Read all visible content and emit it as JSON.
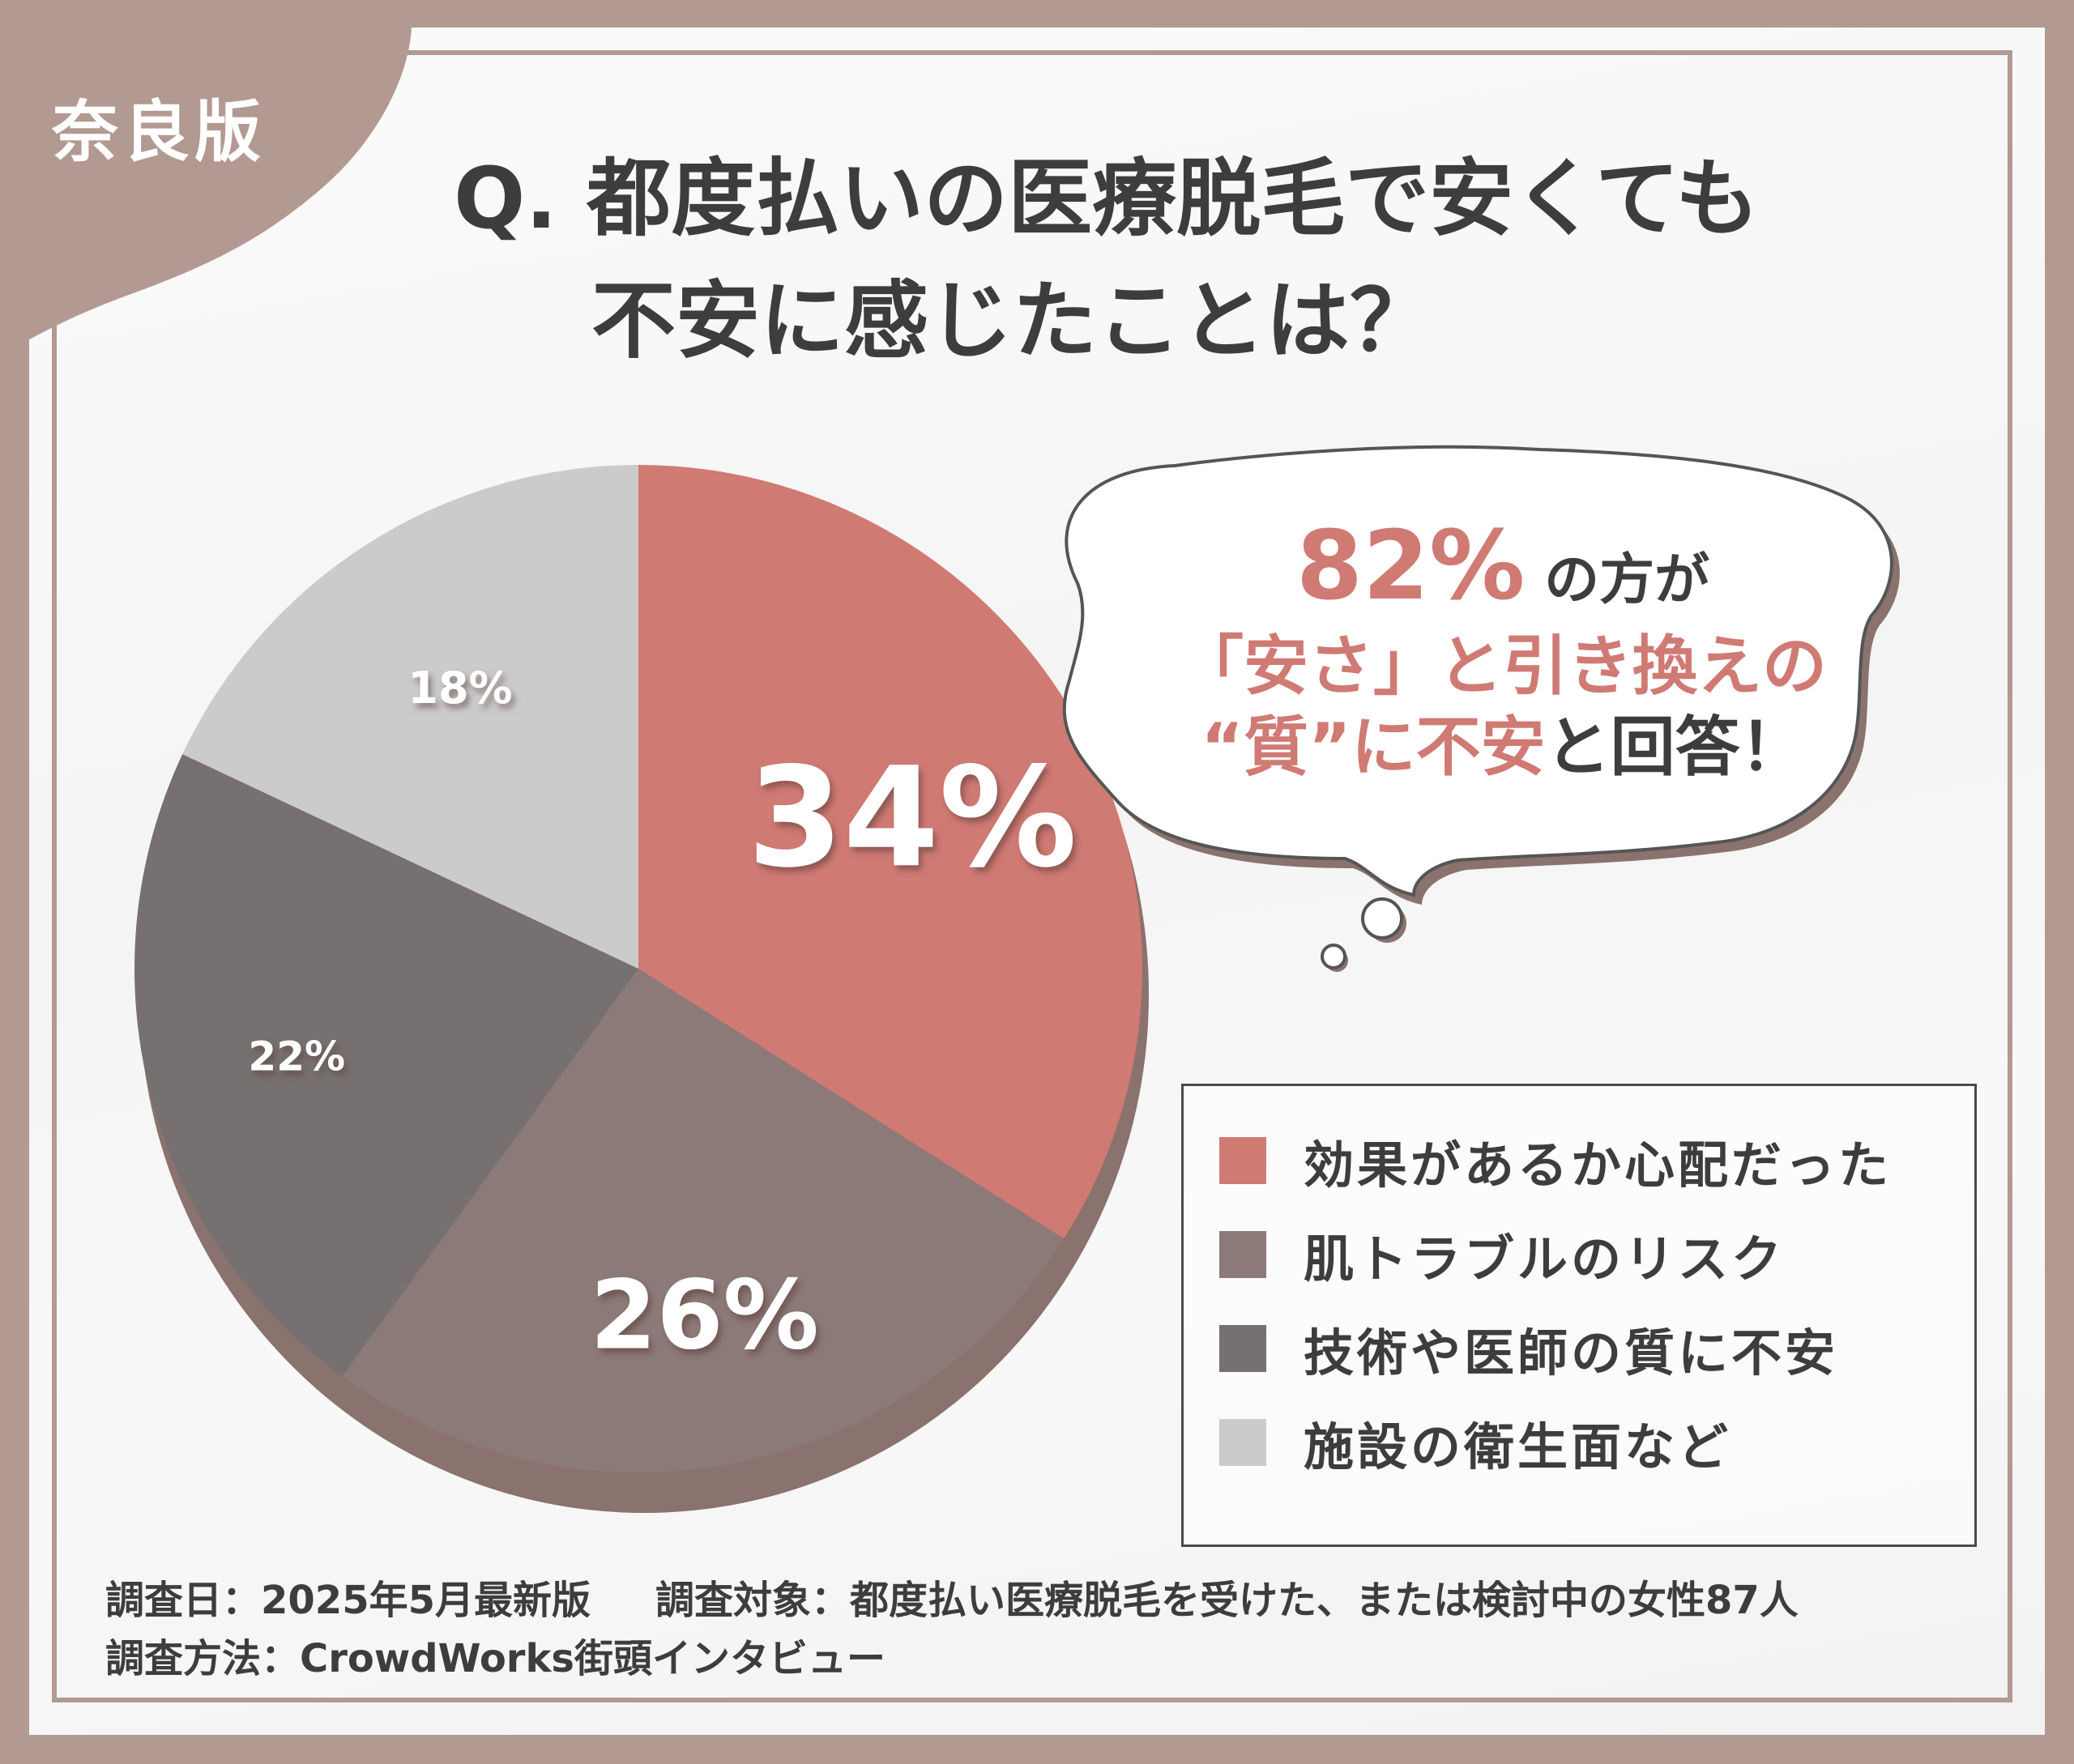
{
  "badge": "奈良版",
  "title": {
    "line1": "Q. 都度払いの医療脱毛で安くても",
    "line2": "不安に感じたことは？"
  },
  "bubble": {
    "highlight": "82%",
    "line1_rest": "の方が",
    "line2": "「安さ」と引き換えの",
    "line3_quality": "“質”",
    "line3_ni": "に",
    "line3_anxiety": "不安",
    "line3_rest": "と回答！"
  },
  "chart_data": {
    "type": "pie",
    "start_angle": "12 o'clock",
    "direction": "clockwise",
    "slices": [
      {
        "label": "効果があるか心配だった",
        "value": 34,
        "display": "34%",
        "color": "#d07a74"
      },
      {
        "label": "肌トラブルのリスク",
        "value": 26,
        "display": "26%",
        "color": "#8c7a78"
      },
      {
        "label": "技術や医師の質に不安",
        "value": 22,
        "display": "22%",
        "color": "#767170"
      },
      {
        "label": "施設の衛生面など",
        "value": 18,
        "display": "18%",
        "color": "#cbcbcb"
      }
    ],
    "legend_position": "bottom-right"
  },
  "colors": {
    "frame": "#b29a92",
    "accent": "#d07a74",
    "text": "#3d3d3d"
  },
  "footer": {
    "survey_date": "調査日：2025年5月最新版",
    "survey_target": "調査対象：都度払い医療脱毛を受けた、または検討中の女性87人",
    "survey_method": "調査方法：CrowdWorks街頭インタビュー"
  }
}
